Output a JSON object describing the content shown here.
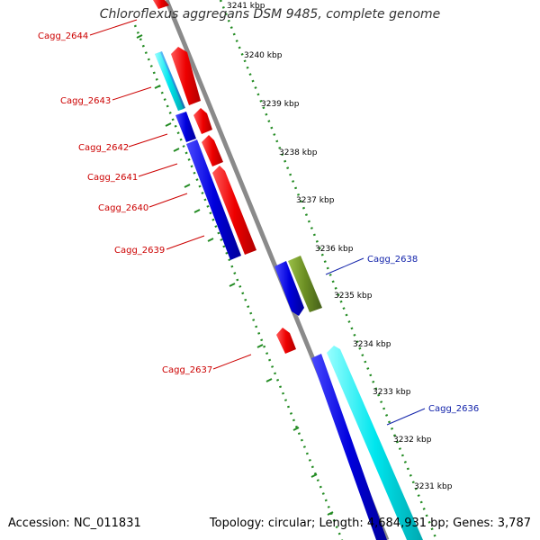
{
  "title": "Chloroflexus aggregans DSM 9485, complete genome",
  "footer": {
    "accession": "Accession: NC_011831",
    "topology": "Topology: circular; Length: 4,684,931 bp; Genes: 3,787"
  },
  "colors": {
    "backbone": "#8a8a8a",
    "tick": "#228b22",
    "forward_gene": "#ee1111",
    "reverse_gene": "#1111dd",
    "cyan_gene": "#11e0e8",
    "light_blue_gene": "#33aaee",
    "olive_gene": "#6b8e23",
    "label_red": "#cc0000",
    "label_blue": "#1122aa"
  },
  "kbp_labels": [
    "3241 kbp",
    "3240 kbp",
    "3239 kbp",
    "3238 kbp",
    "3237 kbp",
    "3236 kbp",
    "3235 kbp",
    "3234 kbp",
    "3233 kbp",
    "3232 kbp",
    "3231 kbp"
  ],
  "gene_labels": {
    "g2644": "Cagg_2644",
    "g2643": "Cagg_2643",
    "g2642": "Cagg_2642",
    "g2641": "Cagg_2641",
    "g2640": "Cagg_2640",
    "g2639": "Cagg_2639",
    "g2638": "Cagg_2638",
    "g2637": "Cagg_2637",
    "g2636": "Cagg_2636"
  }
}
